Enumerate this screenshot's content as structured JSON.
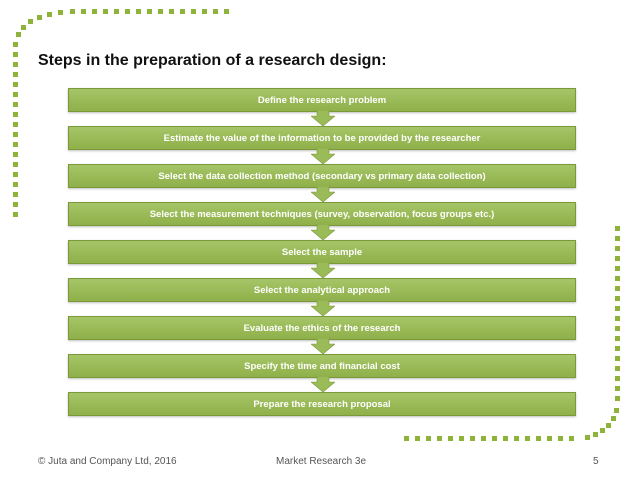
{
  "title": "Steps in the preparation of a research design:",
  "steps": [
    "Define the research problem",
    "Estimate the value of the information to be provided by the researcher",
    "Select the data collection method (secondary vs primary data collection)",
    "Select the measurement techniques (survey, observation, focus groups etc.)",
    "Select the sample",
    "Select the analytical approach",
    "Evaluate the ethics of the research",
    "Specify the time and financial cost",
    "Prepare the research proposal"
  ],
  "footer": {
    "copyright": "© Juta and Company Ltd, 2016",
    "book": "Market Research 3e",
    "page_number": "5"
  },
  "colors": {
    "step_fill": "#9bbb59",
    "arrow_fill": "#9bbb59",
    "decoration": "#8db33a"
  }
}
